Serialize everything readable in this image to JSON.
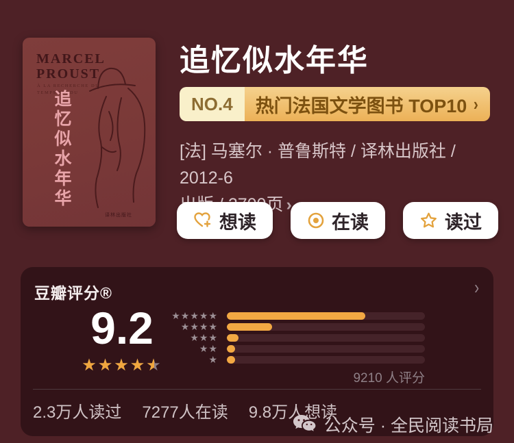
{
  "book": {
    "title": "追忆似水年华",
    "cover": {
      "author_en_line1": "MARCEL",
      "author_en_line2": "PROUST",
      "subtitle_fr_line1": "À LA RECHERCHE DU",
      "subtitle_fr_line2": "TEMPS PERDU",
      "title_vertical": "追忆似水年华",
      "publisher_mark": "译林出版社"
    },
    "rank_badge": {
      "rank": "NO.4",
      "list_label": "热门法国文学图书 TOP10",
      "chevron": "›"
    },
    "meta_line1": "[法] 马塞尔 · 普鲁斯特 / 译林出版社 / 2012-6",
    "meta_line2": "出版 / 2700页",
    "meta_chevron": "›"
  },
  "actions": [
    {
      "label": "想读",
      "icon": "heart-plus-icon"
    },
    {
      "label": "在读",
      "icon": "circle-dot-icon"
    },
    {
      "label": "读过",
      "icon": "star-outline-icon"
    }
  ],
  "rating_card": {
    "title": "豆瓣评分®",
    "chevron": "›",
    "score": "9.2",
    "stars_out_of_5": 4.5,
    "ratings_count": "9210 人评分",
    "chart_data": {
      "type": "bar",
      "categories": [
        "5星",
        "4星",
        "3星",
        "2星",
        "1星"
      ],
      "values": [
        70,
        23,
        6,
        4,
        4
      ],
      "unit": "percent-of-track",
      "bar_color": "#f2a843",
      "track_color": "#452329",
      "orientation": "horizontal"
    },
    "stats": [
      "2.3万人读过",
      "7277人在读",
      "9.8万人想读"
    ]
  },
  "watermark": {
    "text": "公众号 · 全民阅读书局",
    "icon": "wechat-icon"
  },
  "colors": {
    "page_bg": "#4e2126",
    "card_bg": "#321318",
    "cover_bg": "#7a3938",
    "accent_orange": "#f0a63e",
    "badge_left_bg": "#f9f0ca",
    "badge_gold_top": "#f5d18d",
    "badge_gold_bottom": "#ecb157",
    "badge_text": "#7c5110",
    "meta_text": "#d8c6c9",
    "cover_title_pink": "#e8a4a9"
  }
}
